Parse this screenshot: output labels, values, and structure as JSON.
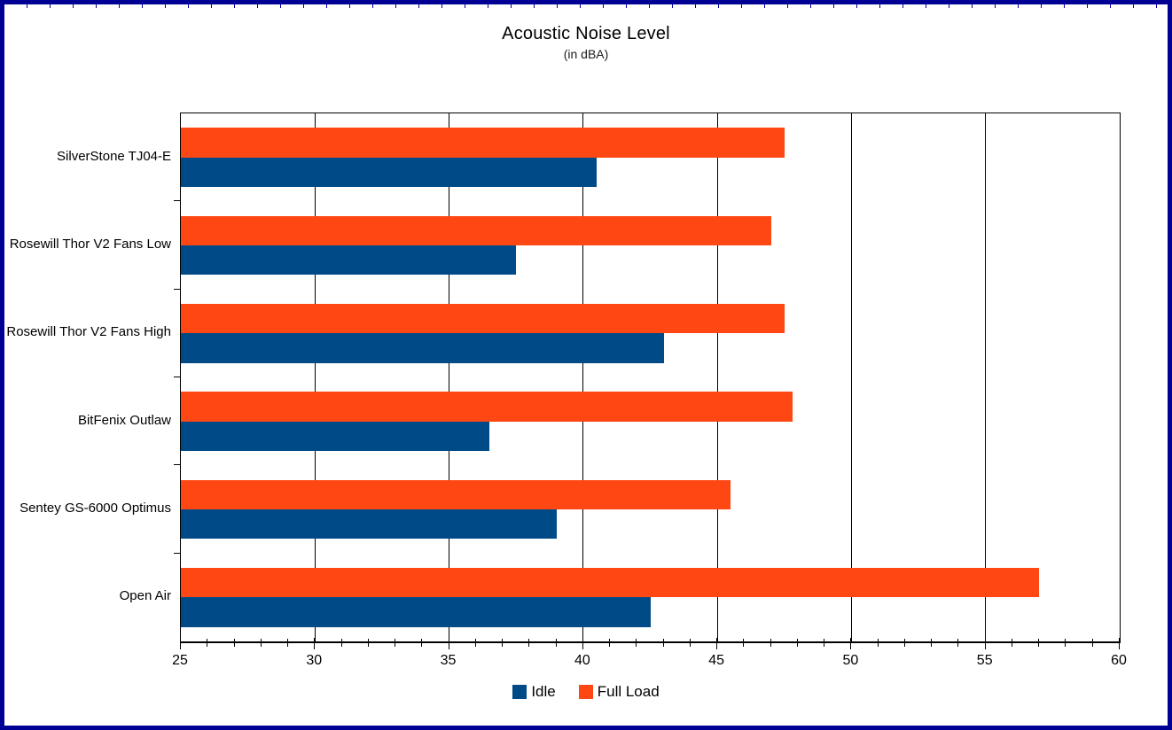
{
  "chart": {
    "title": "Acoustic Noise Level",
    "subtitle": "(in dBA)"
  },
  "legend": {
    "items": [
      {
        "label": "Idle",
        "color": "#004A87"
      },
      {
        "label": "Full Load",
        "color": "#FF4713"
      }
    ]
  },
  "colors": {
    "idle_bar": "#004A87",
    "full_load_bar": "#FF4713",
    "frame_border": "#000094",
    "grid_line": "#000000",
    "text": "#000000"
  },
  "chart_data": {
    "type": "bar",
    "orientation": "horizontal",
    "title": "Acoustic Noise Level",
    "subtitle": "(in dBA)",
    "categories": [
      "SilverStone TJ04-E",
      "Rosewill Thor V2 Fans Low",
      "Rosewill Thor V2 Fans High",
      "BitFenix Outlaw",
      "Sentey GS-6000 Optimus",
      "Open Air"
    ],
    "series": [
      {
        "name": "Idle",
        "color": "#004A87",
        "values": [
          40.5,
          37.5,
          43,
          36.5,
          39,
          42.5
        ]
      },
      {
        "name": "Full Load",
        "color": "#FF4713",
        "values": [
          47.5,
          47,
          47.5,
          47.8,
          45.5,
          57
        ]
      }
    ],
    "group_order_top_to_bottom": [
      "Full Load",
      "Idle"
    ],
    "xlim": [
      25,
      60
    ],
    "x_major_step": 5,
    "x_minor_step": 1,
    "x_tick_labels": [
      "25",
      "30",
      "35",
      "40",
      "45",
      "50",
      "55",
      "60"
    ],
    "grid": "vertical-major-lines",
    "legend_position": "bottom"
  }
}
